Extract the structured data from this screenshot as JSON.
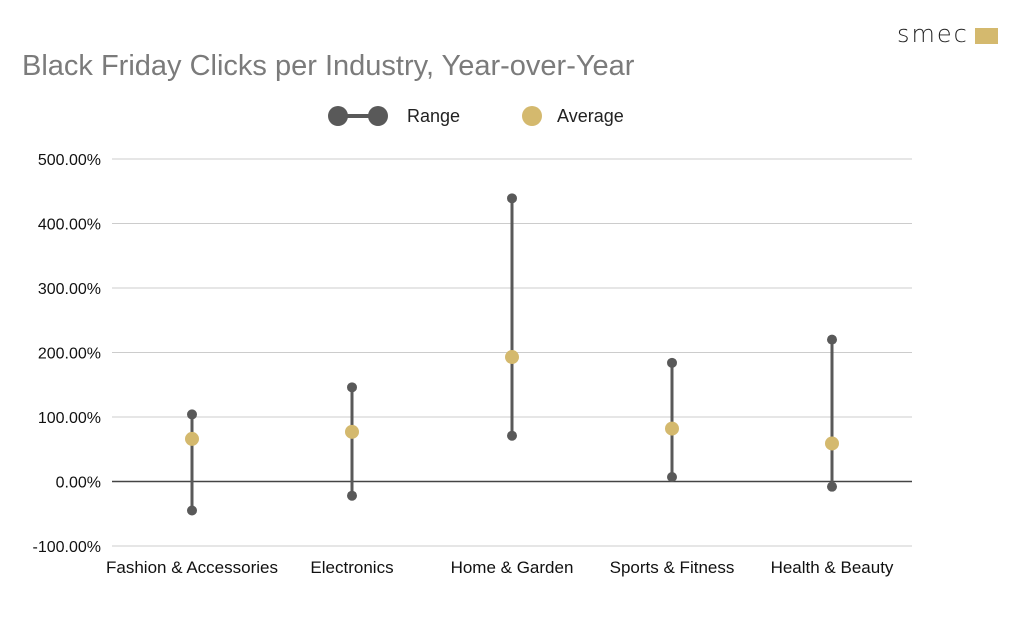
{
  "brand": {
    "name": "smec"
  },
  "colors": {
    "range": "#595959",
    "average": "#d4b96e",
    "grid": "#cccccc",
    "zero_line": "#444444",
    "title": "#7b7b7b"
  },
  "legend": {
    "range_label": "Range",
    "average_label": "Average",
    "position": "top"
  },
  "chart_data": {
    "type": "scatter",
    "subtype": "range-dot",
    "title": "Black Friday Clicks per Industry, Year-over-Year",
    "xlabel": "",
    "ylabel": "",
    "categories": [
      "Fashion & Accessories",
      "Electronics",
      "Home & Garden",
      "Sports & Fitness",
      "Health & Beauty"
    ],
    "series": [
      {
        "name": "Range",
        "min": [
          -45,
          -22,
          71,
          7,
          -8
        ],
        "max": [
          104,
          146,
          439,
          184,
          220
        ]
      },
      {
        "name": "Average",
        "values": [
          66,
          77,
          193,
          82,
          59
        ]
      }
    ],
    "ylim": [
      -100,
      500
    ],
    "yticks": [
      -100,
      0,
      100,
      200,
      300,
      400,
      500
    ],
    "ytick_labels": [
      "-100.00%",
      "0.00%",
      "100.00%",
      "200.00%",
      "300.00%",
      "400.00%",
      "500.00%"
    ],
    "grid": true
  }
}
